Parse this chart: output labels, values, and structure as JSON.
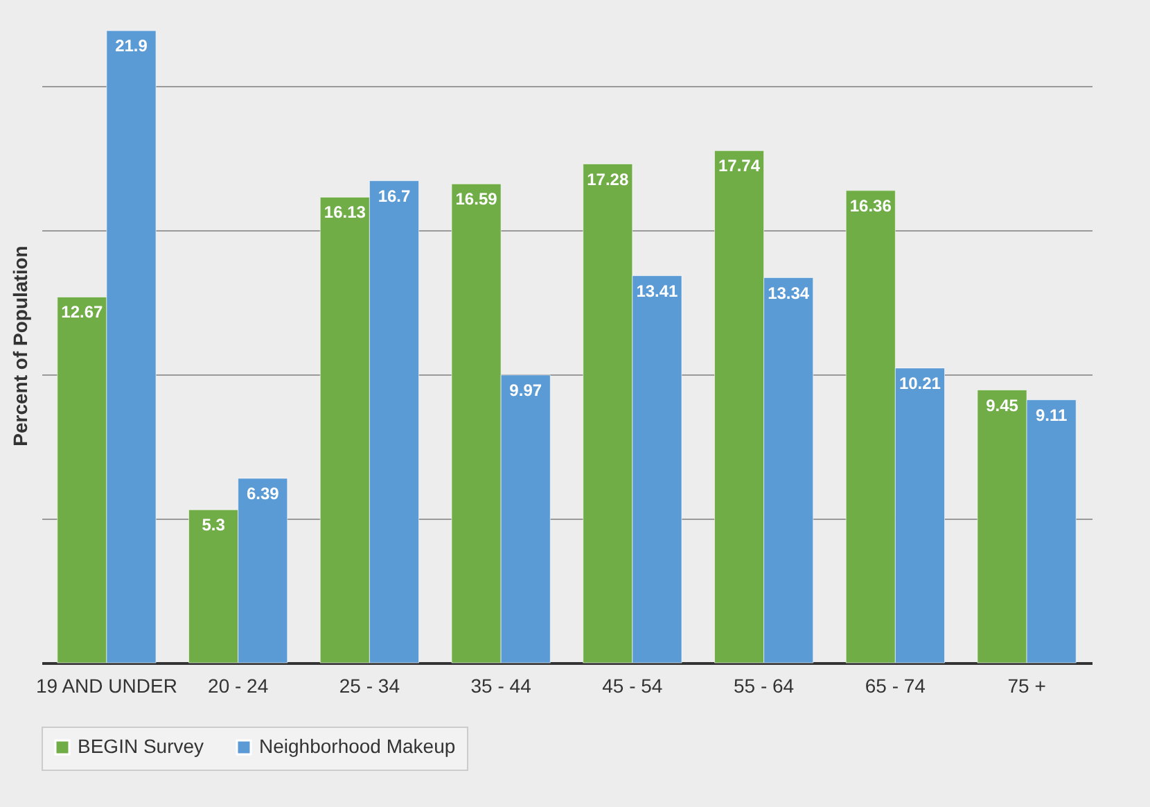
{
  "chart_data": {
    "type": "bar",
    "ylabel": "Percent of Population",
    "categories": [
      "19 AND UNDER",
      "20 - 24",
      "25 - 34",
      "35 - 44",
      "45 - 54",
      "55 - 64",
      "65 - 74",
      "75 +"
    ],
    "series": [
      {
        "name": "BEGIN Survey",
        "color": "#70ad47",
        "values": [
          12.67,
          5.3,
          16.13,
          16.59,
          17.28,
          17.74,
          16.36,
          9.45
        ]
      },
      {
        "name": "Neighborhood Makeup",
        "color": "#5b9bd5",
        "values": [
          21.9,
          6.39,
          16.7,
          9.97,
          13.41,
          13.34,
          10.21,
          9.11
        ]
      }
    ],
    "tick_labels": "x",
    "grid": "y",
    "data_labels": true,
    "legend": "bottom"
  }
}
